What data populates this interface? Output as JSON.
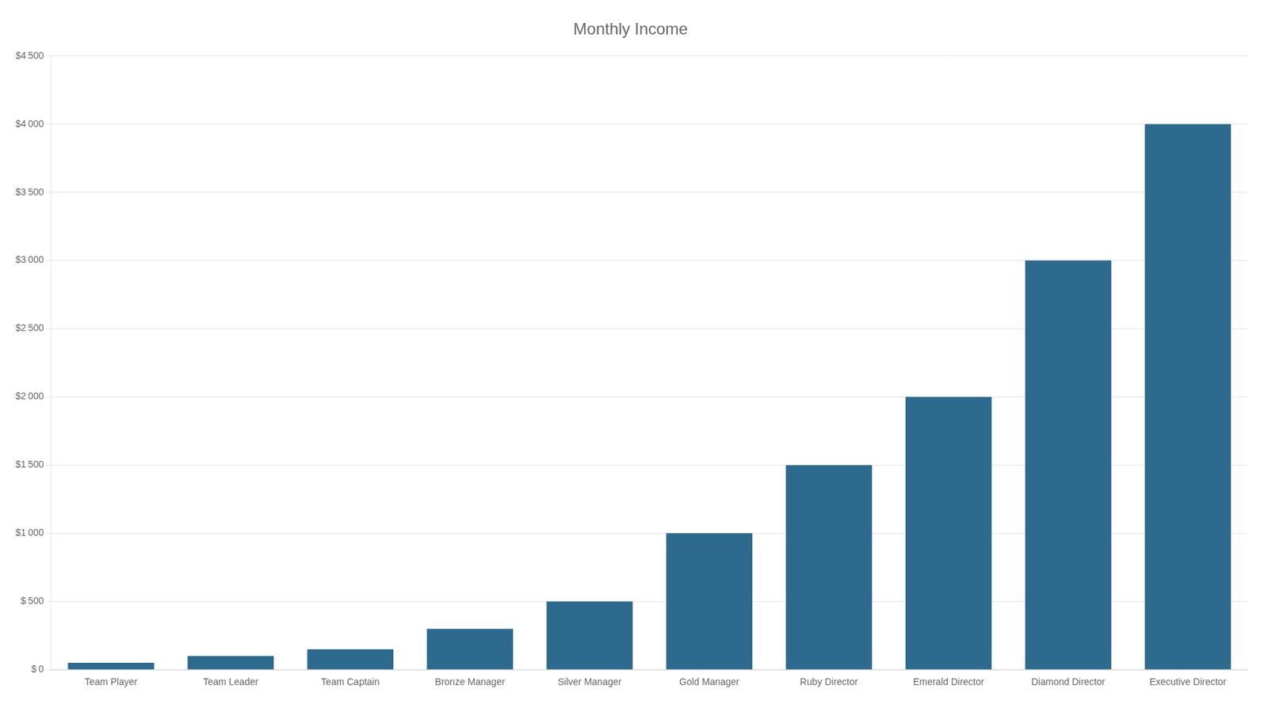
{
  "chart_data": {
    "type": "bar",
    "title": "Monthly Income",
    "categories": [
      "Team Player",
      "Team Leader",
      "Team Captain",
      "Bronze Manager",
      "Silver Manager",
      "Gold Manager",
      "Ruby Director",
      "Emerald Director",
      "Diamond Director",
      "Executive Director"
    ],
    "values": [
      50,
      100,
      150,
      300,
      500,
      1000,
      1500,
      2000,
      3000,
      4000
    ],
    "color": "#2e6a8e",
    "ylim": [
      0,
      4500
    ],
    "yticks": [
      {
        "value": 0,
        "label": "$ 0"
      },
      {
        "value": 500,
        "label": "$ 500"
      },
      {
        "value": 1000,
        "label": "$1 000"
      },
      {
        "value": 1500,
        "label": "$1 500"
      },
      {
        "value": 2000,
        "label": "$2 000"
      },
      {
        "value": 2500,
        "label": "$2 500"
      },
      {
        "value": 3000,
        "label": "$3 000"
      },
      {
        "value": 3500,
        "label": "$3 500"
      },
      {
        "value": 4000,
        "label": "$4 000"
      },
      {
        "value": 4500,
        "label": "$4 500"
      }
    ],
    "grid": true
  }
}
